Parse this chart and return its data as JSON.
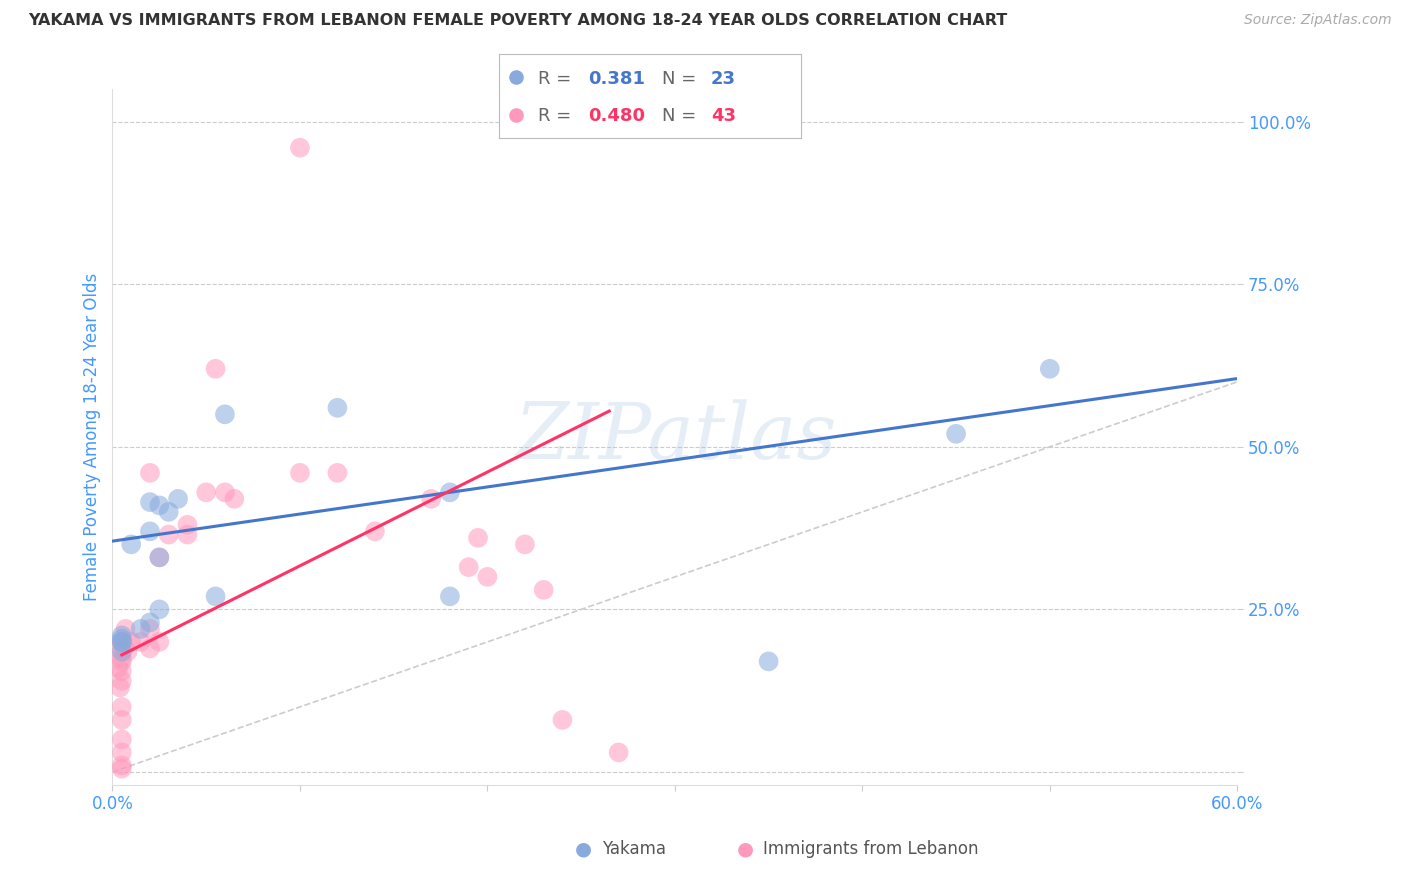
{
  "title": "YAKAMA VS IMMIGRANTS FROM LEBANON FEMALE POVERTY AMONG 18-24 YEAR OLDS CORRELATION CHART",
  "source": "Source: ZipAtlas.com",
  "ylabel": "Female Poverty Among 18-24 Year Olds",
  "watermark": "ZIPatlas",
  "xlim": [
    0.0,
    0.6
  ],
  "ylim": [
    -0.02,
    1.05
  ],
  "yticks": [
    0.0,
    0.25,
    0.5,
    0.75,
    1.0
  ],
  "ytick_labels": [
    "",
    "25.0%",
    "50.0%",
    "75.0%",
    "100.0%"
  ],
  "xticks": [
    0.0,
    0.1,
    0.2,
    0.3,
    0.4,
    0.5,
    0.6
  ],
  "xtick_labels": [
    "0.0%",
    "",
    "",
    "",
    "",
    "",
    "60.0%"
  ],
  "blue_R": 0.381,
  "blue_N": 23,
  "pink_R": 0.48,
  "pink_N": 43,
  "blue_color": "#88AADD",
  "pink_color": "#FF99BB",
  "blue_line_color": "#4477CC",
  "pink_line_color": "#FF3366",
  "legend_label_blue": "Yakama",
  "legend_label_pink": "Immigrants from Lebanon",
  "blue_scatter_x": [
    0.005,
    0.005,
    0.005,
    0.005,
    0.005,
    0.01,
    0.015,
    0.02,
    0.02,
    0.02,
    0.025,
    0.025,
    0.025,
    0.03,
    0.035,
    0.055,
    0.06,
    0.12,
    0.18,
    0.18,
    0.35,
    0.45,
    0.5
  ],
  "blue_scatter_y": [
    0.2,
    0.205,
    0.21,
    0.185,
    0.2,
    0.35,
    0.22,
    0.37,
    0.23,
    0.415,
    0.25,
    0.41,
    0.33,
    0.4,
    0.42,
    0.27,
    0.55,
    0.56,
    0.43,
    0.27,
    0.17,
    0.52,
    0.62
  ],
  "pink_scatter_x": [
    0.003,
    0.003,
    0.004,
    0.005,
    0.005,
    0.005,
    0.005,
    0.005,
    0.005,
    0.005,
    0.005,
    0.005,
    0.005,
    0.005,
    0.006,
    0.007,
    0.008,
    0.01,
    0.015,
    0.02,
    0.02,
    0.02,
    0.025,
    0.025,
    0.03,
    0.04,
    0.04,
    0.05,
    0.055,
    0.06,
    0.065,
    0.1,
    0.1,
    0.12,
    0.14,
    0.17,
    0.19,
    0.195,
    0.2,
    0.22,
    0.23,
    0.24,
    0.27
  ],
  "pink_scatter_y": [
    0.19,
    0.16,
    0.13,
    0.2,
    0.175,
    0.17,
    0.155,
    0.14,
    0.1,
    0.08,
    0.05,
    0.03,
    0.01,
    0.005,
    0.19,
    0.22,
    0.185,
    0.2,
    0.2,
    0.22,
    0.19,
    0.46,
    0.33,
    0.2,
    0.365,
    0.365,
    0.38,
    0.43,
    0.62,
    0.43,
    0.42,
    0.46,
    0.96,
    0.46,
    0.37,
    0.42,
    0.315,
    0.36,
    0.3,
    0.35,
    0.28,
    0.08,
    0.03
  ],
  "blue_line_x0": 0.0,
  "blue_line_x1": 0.6,
  "blue_line_y0": 0.355,
  "blue_line_y1": 0.605,
  "pink_line_x0": 0.005,
  "pink_line_x1": 0.265,
  "pink_line_y0": 0.18,
  "pink_line_y1": 0.555,
  "ref_line_x0": 0.0,
  "ref_line_x1": 0.6,
  "ref_line_y0": 0.0,
  "ref_line_y1": 0.6,
  "background_color": "#ffffff",
  "grid_color": "#cccccc",
  "title_color": "#333333",
  "axis_color": "#4499FF",
  "source_color": "#aaaaaa"
}
